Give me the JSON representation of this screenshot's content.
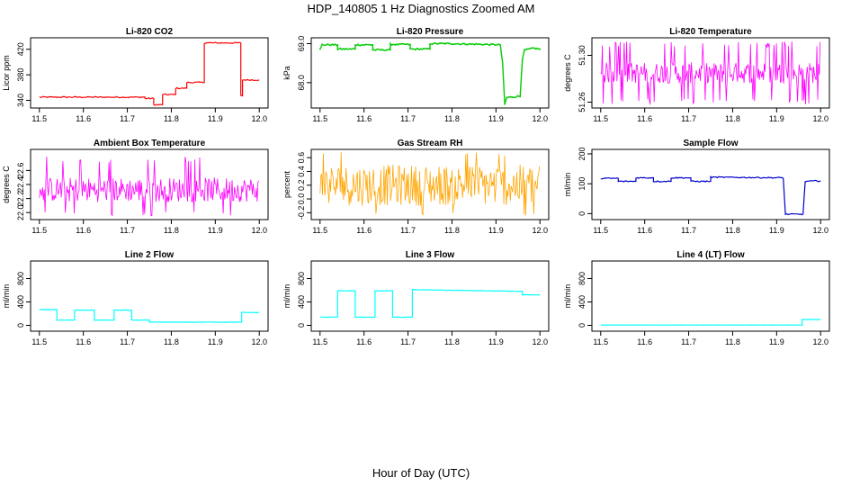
{
  "title": "HDP_140805  1 Hz Diagnostics Zoomed AM",
  "xlabel": "Hour of Day (UTC)",
  "chart_data": [
    {
      "type": "line",
      "title": "Li-820 CO2",
      "ylabel": "Licor ppm",
      "color": "#ff0000",
      "xlim": [
        11.48,
        12.02
      ],
      "xticks": [
        11.5,
        11.6,
        11.7,
        11.8,
        11.9,
        12.0
      ],
      "ylim": [
        328,
        438
      ],
      "yticks": [
        340,
        380,
        420
      ],
      "ytick_labels": [
        "340",
        "380",
        "420"
      ],
      "noise": 1,
      "series": [
        {
          "x": [
            11.5,
            11.74,
            11.74,
            11.76,
            11.76,
            11.78,
            11.78,
            11.81,
            11.81,
            11.835,
            11.835,
            11.875,
            11.875,
            11.958,
            11.958,
            11.962,
            11.962,
            11.97,
            12.0
          ],
          "y": [
            345,
            345,
            343,
            343,
            333,
            333,
            349,
            349,
            359,
            359,
            368,
            368,
            430,
            430,
            347,
            347,
            372,
            372,
            372
          ]
        }
      ]
    },
    {
      "type": "line",
      "title": "Li-820 Pressure",
      "ylabel": "kPa",
      "color": "#00cc00",
      "xlim": [
        11.48,
        12.02
      ],
      "xticks": [
        11.5,
        11.6,
        11.7,
        11.8,
        11.9,
        12.0
      ],
      "ylim": [
        67.35,
        69.15
      ],
      "yticks": [
        68.0,
        69.0
      ],
      "ytick_labels": [
        "68.0",
        "69.0"
      ],
      "noise": 0.02,
      "markers": true,
      "series": [
        {
          "x": [
            11.5,
            11.505,
            11.54,
            11.54,
            11.58,
            11.58,
            11.62,
            11.62,
            11.66,
            11.66,
            11.705,
            11.705,
            11.75,
            11.75,
            11.8,
            11.91,
            11.915,
            11.92,
            11.925,
            11.955,
            11.96,
            11.965,
            11.985,
            12.0
          ],
          "y": [
            68.85,
            68.97,
            68.97,
            68.86,
            68.86,
            68.97,
            68.97,
            68.84,
            68.84,
            68.98,
            68.98,
            68.86,
            68.86,
            69.0,
            69.0,
            68.97,
            68.5,
            67.45,
            67.62,
            67.65,
            68.6,
            68.83,
            68.88,
            68.86
          ]
        }
      ]
    },
    {
      "type": "noise",
      "title": "Li-820 Temperature",
      "ylabel": "degrees C",
      "color": "#ff00ff",
      "xlim": [
        11.48,
        12.02
      ],
      "xticks": [
        11.5,
        11.6,
        11.7,
        11.8,
        11.9,
        12.0
      ],
      "ylim": [
        51.255,
        51.315
      ],
      "yticks": [
        51.26,
        51.3
      ],
      "ytick_labels": [
        "51.26",
        "51.30"
      ],
      "band": [
        51.276,
        51.294
      ],
      "spike_hi": 51.312,
      "spike_lo": 51.258,
      "spike_prob": 0.22
    },
    {
      "type": "noise",
      "title": "Ambient Box Temperature",
      "ylabel": "degrees C",
      "color": "#ff00ff",
      "xlim": [
        11.48,
        12.02
      ],
      "xticks": [
        11.5,
        11.6,
        11.7,
        11.8,
        11.9,
        12.0
      ],
      "ylim": [
        21.9,
        22.9
      ],
      "yticks": [
        22.0,
        22.2,
        22.4,
        22.6
      ],
      "ytick_labels": [
        "22.0",
        "22.2",
        "22.4",
        "22.6"
      ],
      "band": [
        22.15,
        22.5
      ],
      "spike_hi": 22.8,
      "spike_lo": 21.95,
      "spike_prob": 0.1
    },
    {
      "type": "noise",
      "title": "Gas Stream RH",
      "ylabel": "percent",
      "color": "#ffa500",
      "xlim": [
        11.48,
        12.02
      ],
      "xticks": [
        11.5,
        11.6,
        11.7,
        11.8,
        11.9,
        12.0
      ],
      "ylim": [
        -0.3,
        0.72
      ],
      "yticks": [
        -0.2,
        0.0,
        0.2,
        0.4,
        0.6
      ],
      "ytick_labels": [
        "-0.2",
        "0.0",
        "0.2",
        "0.4",
        "0.6"
      ],
      "band": [
        -0.1,
        0.5
      ],
      "spike_hi": 0.68,
      "spike_lo": -0.25,
      "spike_prob": 0.05,
      "markers": true
    },
    {
      "type": "line",
      "title": "Sample Flow",
      "ylabel": "ml/min",
      "color": "#0000cc",
      "xlim": [
        11.48,
        12.02
      ],
      "xticks": [
        11.5,
        11.6,
        11.7,
        11.8,
        11.9,
        12.0
      ],
      "ylim": [
        -20,
        215
      ],
      "yticks": [
        0,
        100,
        200
      ],
      "ytick_labels": [
        "0",
        "100",
        "200"
      ],
      "noise": 2,
      "series": [
        {
          "x": [
            11.5,
            11.54,
            11.54,
            11.58,
            11.58,
            11.62,
            11.62,
            11.66,
            11.66,
            11.705,
            11.705,
            11.75,
            11.75,
            11.915,
            11.92,
            11.96,
            11.965,
            12.0
          ],
          "y": [
            118,
            118,
            108,
            108,
            120,
            120,
            108,
            108,
            120,
            120,
            108,
            108,
            122,
            120,
            -2,
            -2,
            108,
            110
          ]
        }
      ]
    },
    {
      "type": "line",
      "title": "Line 2 Flow",
      "ylabel": "ml/min",
      "color": "#00ffff",
      "xlim": [
        11.48,
        12.02
      ],
      "xticks": [
        11.5,
        11.6,
        11.7,
        11.8,
        11.9,
        12.0
      ],
      "ylim": [
        -100,
        1100
      ],
      "yticks": [
        0,
        400,
        800
      ],
      "ytick_labels": [
        "0",
        "400",
        "800"
      ],
      "noise": 3,
      "series": [
        {
          "x": [
            11.5,
            11.54,
            11.54,
            11.58,
            11.58,
            11.625,
            11.625,
            11.67,
            11.67,
            11.71,
            11.71,
            11.75,
            11.75,
            11.96,
            11.96,
            12.0
          ],
          "y": [
            270,
            270,
            90,
            90,
            260,
            260,
            90,
            90,
            260,
            260,
            90,
            90,
            55,
            55,
            220,
            220
          ]
        }
      ]
    },
    {
      "type": "line",
      "title": "Line 3 Flow",
      "ylabel": "ml/min",
      "color": "#00ffff",
      "xlim": [
        11.48,
        12.02
      ],
      "xticks": [
        11.5,
        11.6,
        11.7,
        11.8,
        11.9,
        12.0
      ],
      "ylim": [
        -100,
        1100
      ],
      "yticks": [
        0,
        400,
        800
      ],
      "ytick_labels": [
        "0",
        "400",
        "800"
      ],
      "noise": 4,
      "series": [
        {
          "x": [
            11.5,
            11.54,
            11.54,
            11.58,
            11.58,
            11.625,
            11.625,
            11.665,
            11.665,
            11.71,
            11.71,
            11.96,
            11.96,
            12.0
          ],
          "y": [
            140,
            140,
            590,
            590,
            140,
            140,
            590,
            590,
            140,
            140,
            610,
            580,
            520,
            520
          ]
        }
      ]
    },
    {
      "type": "line",
      "title": "Line 4 (LT) Flow",
      "ylabel": "ml/min",
      "color": "#00ffff",
      "xlim": [
        11.48,
        12.02
      ],
      "xticks": [
        11.5,
        11.6,
        11.7,
        11.8,
        11.9,
        12.0
      ],
      "ylim": [
        -100,
        1100
      ],
      "yticks": [
        0,
        400,
        800
      ],
      "ytick_labels": [
        "0",
        "400",
        "800"
      ],
      "noise": 1,
      "series": [
        {
          "x": [
            11.5,
            11.958,
            11.958,
            12.0
          ],
          "y": [
            5,
            5,
            100,
            100
          ]
        }
      ]
    }
  ]
}
